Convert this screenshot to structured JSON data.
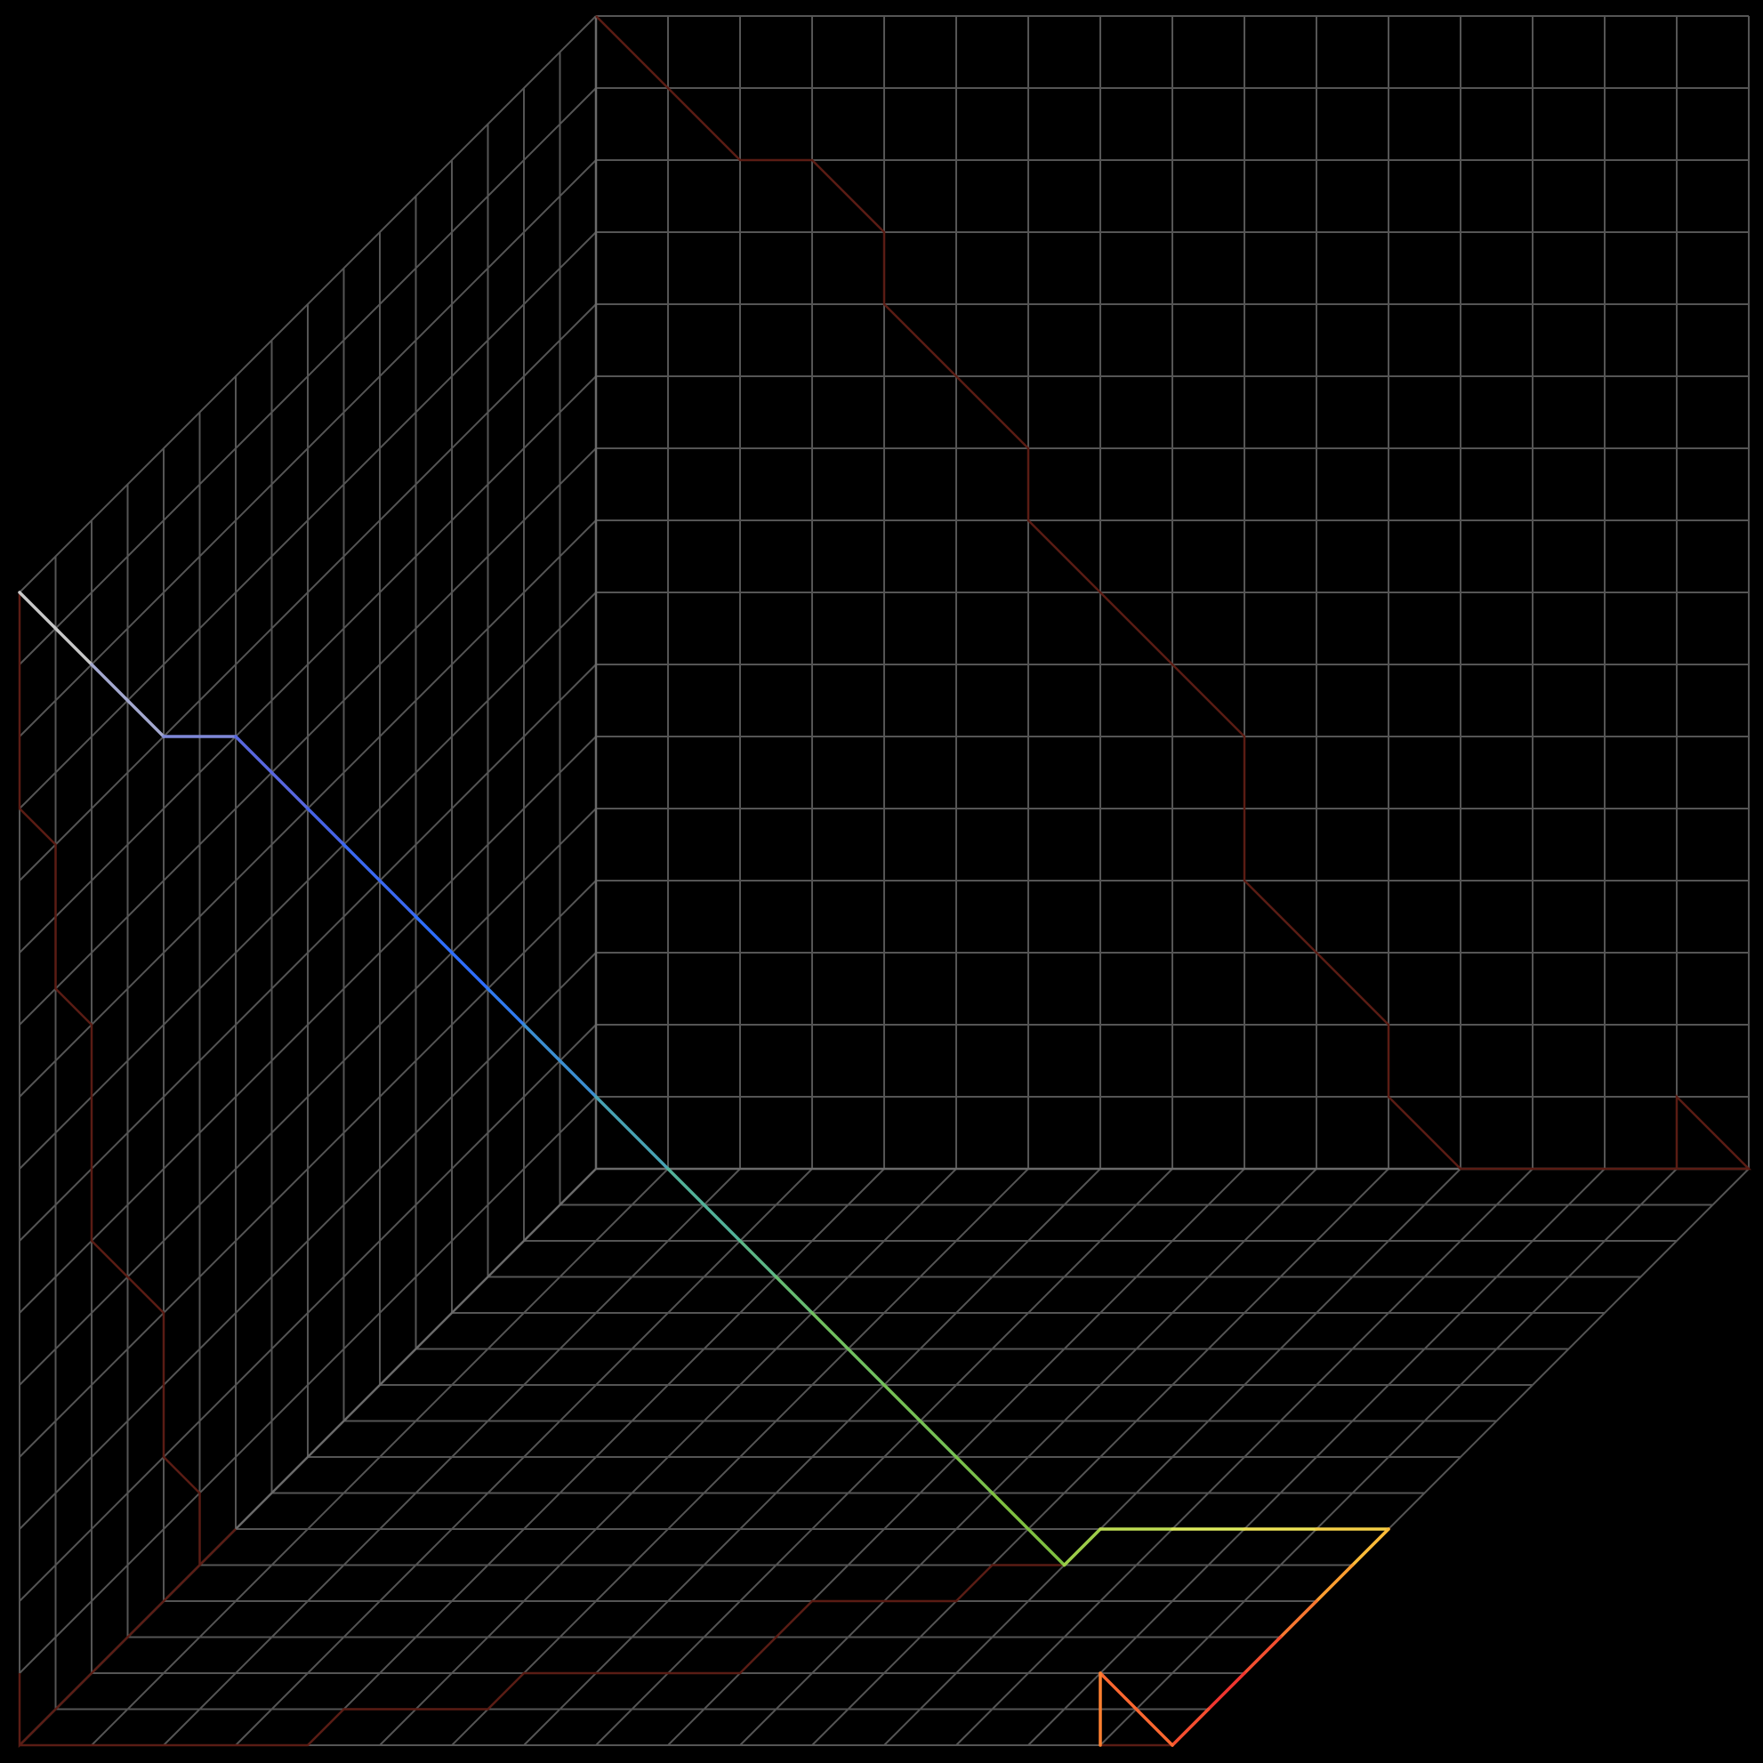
{
  "colors": {
    "background": "#000000",
    "grid": "#555555",
    "projection": "#5a1c14",
    "path_gradient": [
      "#c8c8c8",
      "#5060e0",
      "#2a70ff",
      "#50b0a0",
      "#70c060",
      "#80c040",
      "#e8f060",
      "#ffb030",
      "#f03030",
      "#ff8030"
    ]
  },
  "grid": {
    "divisions": 16
  },
  "path3d": {
    "comment_free": true,
    "points": [
      [
        0,
        0,
        16
      ],
      [
        1,
        0,
        15
      ],
      [
        2,
        0,
        14
      ],
      [
        3,
        0,
        14
      ],
      [
        4,
        0,
        13
      ],
      [
        4,
        1,
        12
      ],
      [
        5,
        1,
        11
      ],
      [
        6,
        1,
        10
      ],
      [
        6,
        2,
        9
      ],
      [
        7,
        2,
        8
      ],
      [
        8,
        2,
        7
      ],
      [
        9,
        2,
        6
      ],
      [
        9,
        3,
        5
      ],
      [
        9,
        4,
        4
      ],
      [
        10,
        4,
        3
      ],
      [
        11,
        4,
        2
      ],
      [
        11,
        5,
        1
      ],
      [
        12,
        5,
        0
      ],
      [
        12,
        6,
        0
      ],
      [
        13,
        6,
        0
      ],
      [
        14,
        6,
        0
      ],
      [
        15,
        6,
        0
      ],
      [
        16,
        6,
        0
      ],
      [
        16,
        5,
        0
      ],
      [
        16,
        4,
        0
      ],
      [
        16,
        3,
        0
      ],
      [
        16,
        2,
        0
      ],
      [
        16,
        1,
        0
      ],
      [
        16,
        0,
        0
      ],
      [
        15,
        0,
        1
      ],
      [
        15,
        0,
        0
      ]
    ]
  }
}
